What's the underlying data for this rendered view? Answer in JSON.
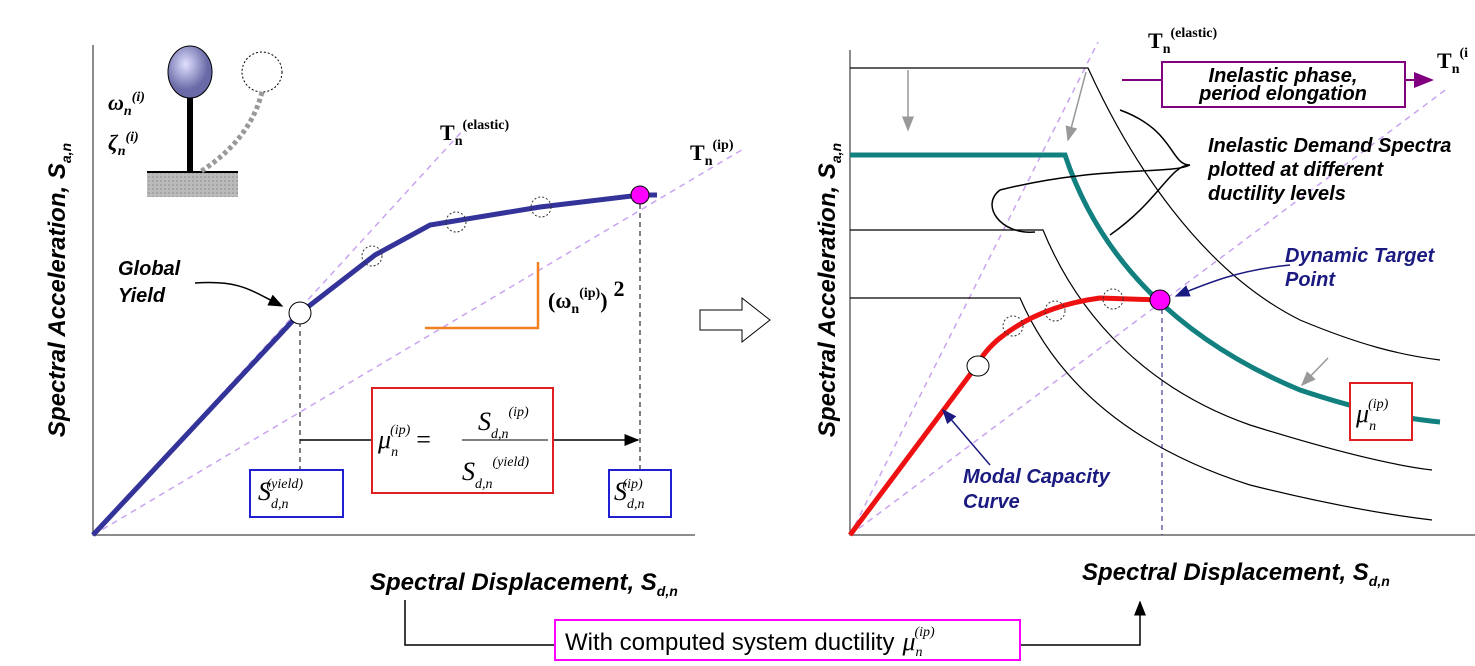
{
  "left_panel": {
    "y_axis_label": {
      "text": "Spectral Acceleration, S",
      "sub": "a,n"
    },
    "x_axis_label": {
      "text": "Spectral Displacement, S",
      "sub": "d,n"
    },
    "omega": {
      "base": "ω",
      "sub": "n",
      "sup": "(i)"
    },
    "zeta": {
      "base": "ζ",
      "sub": "n",
      "sup": "(i)"
    },
    "t_elastic": {
      "base": "T",
      "sub": "n",
      "sup": "(elastic)"
    },
    "t_ip": {
      "base": "T",
      "sub": "n",
      "sup": "(ip)"
    },
    "global_yield": [
      "Global",
      "Yield"
    ],
    "stiffness": {
      "open": "(ω",
      "sub": "n",
      "sup": "(ip)",
      "close": ")",
      "power": "2"
    },
    "formula": {
      "mu": "μ",
      "mu_sub": "n",
      "mu_sup": "(ip)",
      "equals": "=",
      "num": "S",
      "num_sub": "d,n",
      "num_sup": "(ip)",
      "den": "S",
      "den_sub": "d,n",
      "den_sup": "(yield)"
    },
    "yield_box": {
      "base": "S",
      "sub": "d,n",
      "sup": "(yield)"
    },
    "ip_box": {
      "base": "S",
      "sub": "d,n",
      "sup": "(ip)"
    }
  },
  "right_panel": {
    "y_axis_label": {
      "text": "Spectral Acceleration, S",
      "sub": "a,n"
    },
    "x_axis_label": {
      "text": "Spectral Displacement, S",
      "sub": "d,n"
    },
    "t_elastic": {
      "base": "T",
      "sub": "n",
      "sup": "(elastic)"
    },
    "t_ip": {
      "base": "T",
      "sub": "n",
      "sup": "(i"
    },
    "phase_box": [
      "Inelastic phase,",
      "period elongation"
    ],
    "demand_spectra": [
      "Inelastic Demand Spectra",
      "plotted at different",
      "ductility levels"
    ],
    "target": [
      "Dynamic Target",
      "Point"
    ],
    "capacity": [
      "Modal Capacity",
      "Curve"
    ],
    "mu_box": {
      "base": "μ",
      "sub": "n",
      "sup": "(ip)"
    }
  },
  "footer": {
    "text": "With computed system ductility",
    "mu": "μ",
    "sub": "n",
    "sup": "(ip)"
  }
}
